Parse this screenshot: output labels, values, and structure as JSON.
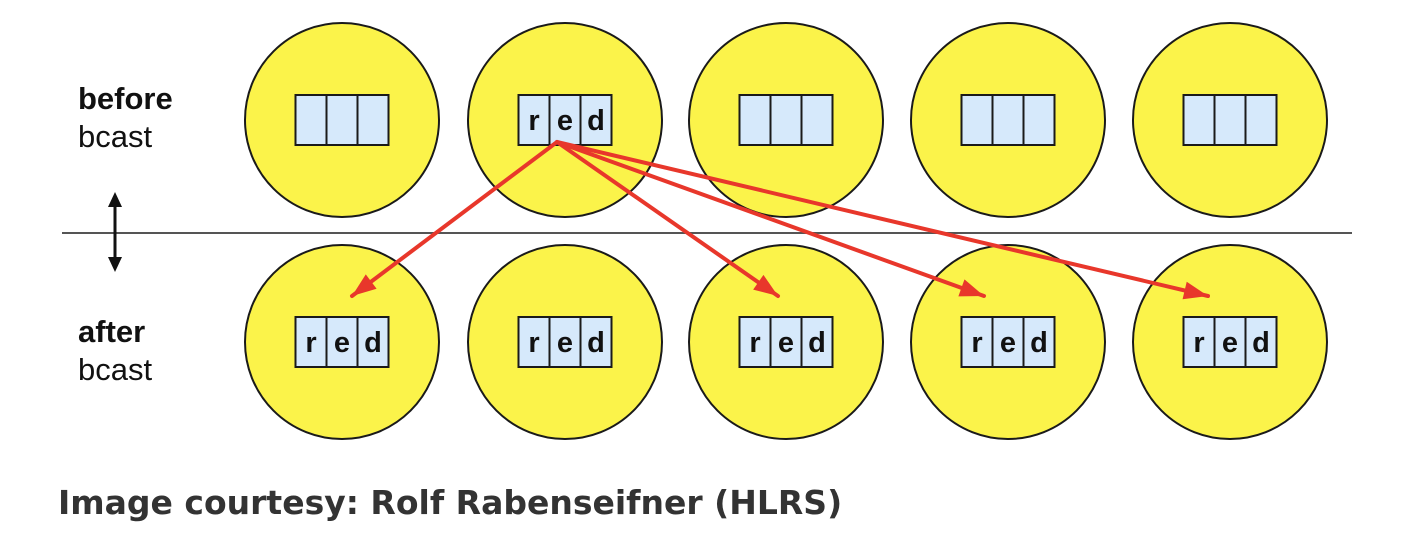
{
  "labels": {
    "before": {
      "line1": "before",
      "line2": "bcast"
    },
    "after": {
      "line1": "after",
      "line2": "bcast"
    }
  },
  "caption": "Image courtesy: Rolf Rabenseifner (HLRS)",
  "processes_per_row": 5,
  "root_process_index": 1,
  "buffer_values": [
    "r",
    "e",
    "d"
  ],
  "before_buffers": [
    [
      "",
      "",
      ""
    ],
    [
      "r",
      "e",
      "d"
    ],
    [
      "",
      "",
      ""
    ],
    [
      "",
      "",
      ""
    ],
    [
      "",
      "",
      ""
    ]
  ],
  "after_buffers": [
    [
      "r",
      "e",
      "d"
    ],
    [
      "r",
      "e",
      "d"
    ],
    [
      "r",
      "e",
      "d"
    ],
    [
      "r",
      "e",
      "d"
    ],
    [
      "r",
      "e",
      "d"
    ]
  ],
  "broadcast_targets": [
    0,
    2,
    3,
    4
  ],
  "colors": {
    "process_fill": "#fbf34a",
    "process_stroke": "#1a1a1a",
    "buffer_fill": "#d6e9fb",
    "buffer_stroke": "#1a1a1a",
    "arrow": "#e8372b",
    "divider": "#555555"
  }
}
